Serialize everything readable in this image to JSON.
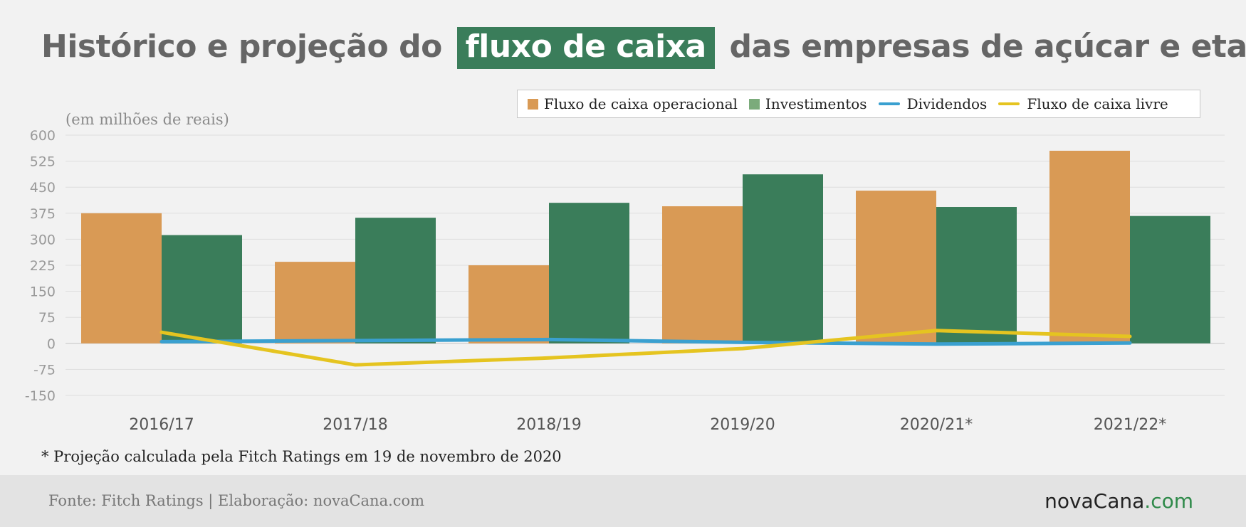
{
  "title": {
    "before": "Histórico e projeção do",
    "highlight": "fluxo de caixa",
    "after": "das empresas de açúcar e etanol"
  },
  "unit_label": "(em milhões de reais)",
  "note": "* Projeção calculada pela Fitch Ratings em 19 de novembro de 2020",
  "footer": {
    "source": "Fonte: Fitch Ratings | Elaboração: novaCana.com",
    "logo_main": "novaCana",
    "logo_suffix": ".com"
  },
  "colors": {
    "operacional": "#d99a55",
    "investimentos": "#3a7d5a",
    "investimentos_legend": "#7bab7b",
    "dividendos": "#3aa0d0",
    "livre": "#e5c420"
  },
  "chart_data": {
    "type": "bar",
    "categories": [
      "2016/17",
      "2017/18",
      "2018/19",
      "2019/20",
      "2020/21*",
      "2021/22*"
    ],
    "ylim": [
      -150,
      600
    ],
    "yticks": [
      600,
      525,
      450,
      375,
      300,
      225,
      150,
      75,
      0,
      -75,
      -150
    ],
    "grid": true,
    "legend_position": "top-right",
    "series": [
      {
        "name": "Fluxo de caixa operacional",
        "type": "bar",
        "values": [
          375,
          235,
          225,
          395,
          440,
          555
        ]
      },
      {
        "name": "Investimentos",
        "type": "bar",
        "values": [
          312,
          362,
          405,
          487,
          393,
          367
        ]
      },
      {
        "name": "Dividendos",
        "type": "line",
        "values": [
          5,
          8,
          11,
          3,
          -2,
          1
        ]
      },
      {
        "name": "Fluxo de caixa livre",
        "type": "line",
        "values": [
          32,
          -62,
          -42,
          -15,
          37,
          20
        ]
      }
    ]
  }
}
